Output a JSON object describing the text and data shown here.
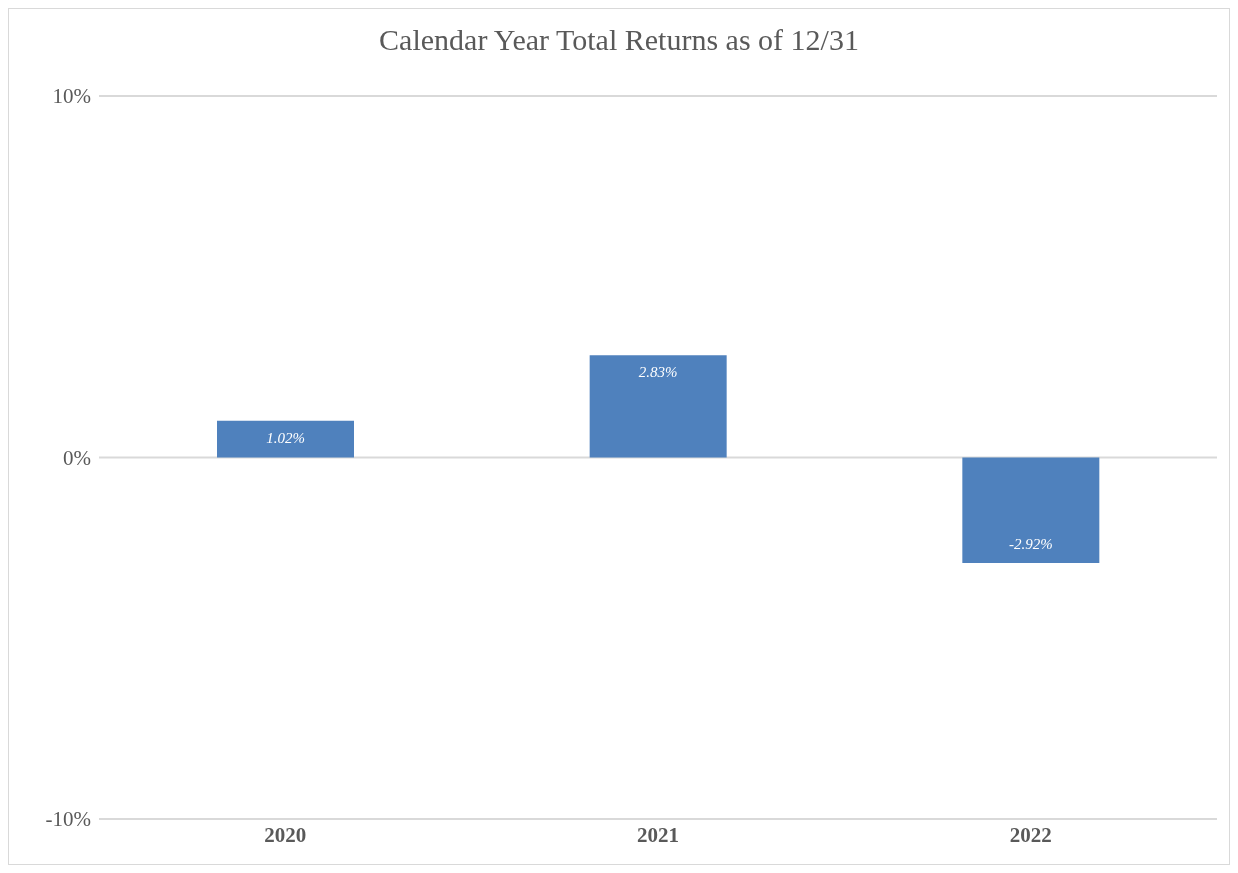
{
  "chart_data": {
    "type": "bar",
    "title": "Calendar Year Total Returns as of 12/31",
    "categories": [
      "2020",
      "2021",
      "2022"
    ],
    "values": [
      1.02,
      2.83,
      -2.92
    ],
    "value_labels": [
      "1.02%",
      "2.83%",
      "-2.92%"
    ],
    "color": "#4f81bd",
    "ylim": [
      -10,
      10
    ],
    "yticks": [
      {
        "value": -10,
        "label": "-10%"
      },
      {
        "value": 0,
        "label": "0%"
      },
      {
        "value": 10,
        "label": "10%"
      }
    ],
    "grid": "y"
  }
}
